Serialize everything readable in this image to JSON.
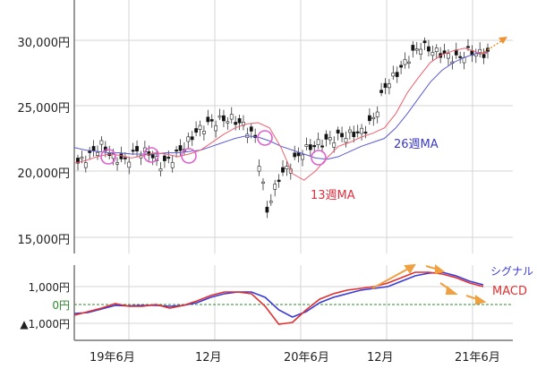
{
  "chart_data": [
    {
      "type": "candlestick",
      "title": "",
      "xlabel": "",
      "ylabel": "",
      "y_ticks": [
        "15,000円",
        "20,000円",
        "25,000円",
        "30,000円"
      ],
      "ylim": [
        13800,
        32000
      ],
      "x_ticks": [
        "19年6月",
        "12月",
        "20年6月",
        "12月",
        "21年6月"
      ],
      "grid": true,
      "series": [
        {
          "name": "13週MA",
          "color": "#e8455a",
          "values": [
            20600,
            20800,
            21100,
            21300,
            21200,
            21000,
            21200,
            21400,
            21300,
            21100,
            21300,
            21600,
            22200,
            22800,
            23300,
            23600,
            23700,
            23300,
            21800,
            19800,
            19300,
            20000,
            21000,
            21900,
            22200,
            22600,
            22900,
            23300,
            24400,
            26000,
            27200,
            28300,
            28900,
            29200,
            29400,
            29100,
            29000
          ]
        },
        {
          "name": "26週MA",
          "color": "#4a4ad0",
          "values": [
            21800,
            21600,
            21500,
            21400,
            21400,
            21300,
            21300,
            21300,
            21400,
            21400,
            21500,
            21600,
            21900,
            22200,
            22500,
            22700,
            22600,
            22300,
            21900,
            21600,
            21300,
            21000,
            20900,
            21100,
            21500,
            21900,
            22200,
            22500,
            23300,
            24400,
            25600,
            26800,
            27700,
            28300,
            28700,
            29000,
            29100
          ]
        },
        {
          "name": "candles_close_approx",
          "values": [
            20600,
            21200,
            22000,
            21000,
            20800,
            21500,
            21400,
            20500,
            21000,
            21900,
            23000,
            23600,
            23900,
            24000,
            23500,
            22500,
            17000,
            19500,
            20500,
            21500,
            22000,
            22300,
            22600,
            22800,
            23000,
            24000,
            26500,
            27500,
            28700,
            29600,
            29200,
            28900,
            28600,
            29100,
            29000
          ]
        }
      ],
      "annotations": [
        {
          "text": "26週MA",
          "color": "#3a3ac8"
        },
        {
          "text": "13週MA",
          "color": "#e03040"
        }
      ],
      "crossover_circles": 6,
      "forecast_arrow_color": "#f0922e"
    },
    {
      "type": "line",
      "title": "",
      "y_ticks": [
        "1,000円",
        "0円",
        "▲1,000円"
      ],
      "zero_label_color": "#2e8b2e",
      "ylim": [
        -1900,
        1900
      ],
      "x_ticks": [
        "19年6月",
        "12月",
        "20年6月",
        "12月",
        "21年6月"
      ],
      "series": [
        {
          "name": "MACD",
          "color": "#e03030",
          "values": [
            -600,
            -400,
            -200,
            50,
            -100,
            -100,
            0,
            -200,
            -50,
            200,
            500,
            700,
            700,
            600,
            -100,
            -1100,
            -1000,
            -300,
            300,
            600,
            800,
            900,
            1000,
            1200,
            1500,
            1800,
            1800,
            1700,
            1500,
            1200,
            1000
          ]
        },
        {
          "name": "シグナル",
          "color": "#3a3ad8",
          "values": [
            -500,
            -450,
            -250,
            -50,
            -80,
            -50,
            -50,
            -100,
            -50,
            100,
            400,
            600,
            700,
            700,
            400,
            -300,
            -700,
            -400,
            100,
            400,
            600,
            800,
            900,
            1000,
            1300,
            1600,
            1750,
            1800,
            1600,
            1300,
            1100
          ]
        }
      ],
      "legend": [
        {
          "text": "シグナル",
          "color": "#3a3ad8"
        },
        {
          "text": "MACD",
          "color": "#e03030"
        }
      ],
      "trend_arrows": 4
    }
  ],
  "labels": {
    "y_main": [
      "30,000円",
      "25,000円",
      "20,000円",
      "15,000円"
    ],
    "y_macd": [
      "1,000円",
      "0円",
      "▲1,000円"
    ],
    "x": [
      "19年6月",
      "12月",
      "20年6月",
      "12月",
      "21年6月"
    ],
    "ma26": "26週MA",
    "ma13": "13週MA",
    "signal": "シグナル",
    "macd": "MACD"
  }
}
